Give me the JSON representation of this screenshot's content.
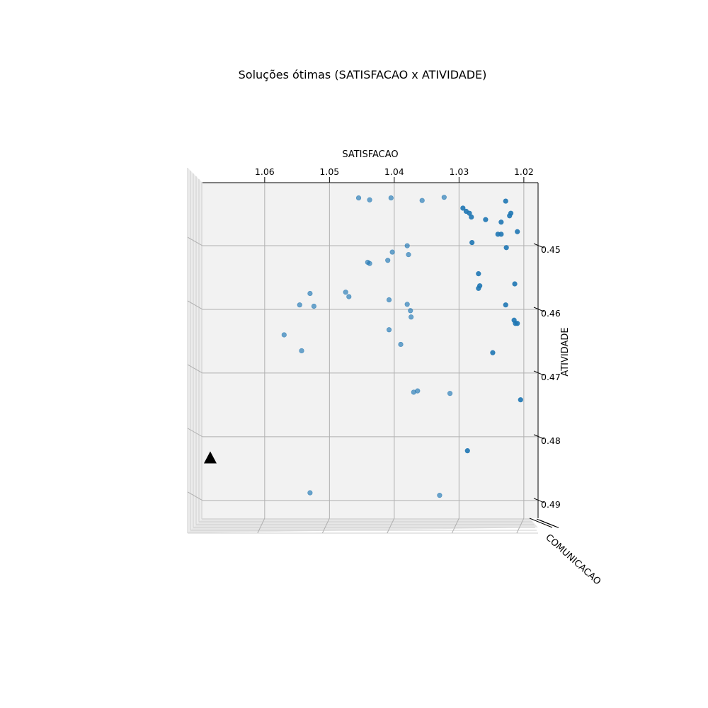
{
  "chart_data": {
    "type": "scatter",
    "projection": "3d",
    "title": "Soluções ótimas (SATISFACAO x ATIVIDADE)",
    "xlabel": "SATISFACAO",
    "ylabel": "ATIVIDADE",
    "zlabel": "COMUNICACAO",
    "x_axis_reversed": true,
    "xlim": [
      1.0696,
      1.0178
    ],
    "ylim": [
      0.4401,
      0.4928
    ],
    "x_ticks": [
      1.06,
      1.05,
      1.04,
      1.03,
      1.02
    ],
    "x_tick_labels": [
      "1.06",
      "1.05",
      "1.04",
      "1.03",
      "1.02"
    ],
    "y_ticks": [
      0.45,
      0.46,
      0.47,
      0.48,
      0.49
    ],
    "y_tick_labels": [
      "0.45",
      "0.46",
      "0.47",
      "0.48",
      "0.49"
    ],
    "grid": true,
    "series": [
      {
        "marker": "circle",
        "color": "#1f77b4",
        "points": [
          [
            1.0455,
            0.4425
          ],
          [
            1.0438,
            0.4428
          ],
          [
            1.0405,
            0.4425
          ],
          [
            1.0357,
            0.4429
          ],
          [
            1.0323,
            0.4424
          ],
          [
            1.0294,
            0.4441
          ],
          [
            1.0289,
            0.4446
          ],
          [
            1.0284,
            0.4449
          ],
          [
            1.0281,
            0.4455
          ],
          [
            1.0259,
            0.4459
          ],
          [
            1.0228,
            0.443
          ],
          [
            1.0222,
            0.4453
          ],
          [
            1.022,
            0.4449
          ],
          [
            1.0235,
            0.4463
          ],
          [
            1.024,
            0.4482
          ],
          [
            1.0235,
            0.4482
          ],
          [
            1.021,
            0.4478
          ],
          [
            1.028,
            0.4495
          ],
          [
            1.0227,
            0.4503
          ],
          [
            1.038,
            0.45
          ],
          [
            1.0403,
            0.451
          ],
          [
            1.0378,
            0.4514
          ],
          [
            1.0441,
            0.4526
          ],
          [
            1.0438,
            0.4528
          ],
          [
            1.041,
            0.4523
          ],
          [
            1.027,
            0.4544
          ],
          [
            1.0268,
            0.4563
          ],
          [
            1.027,
            0.4567
          ],
          [
            1.0214,
            0.456
          ],
          [
            1.0475,
            0.4573
          ],
          [
            1.047,
            0.458
          ],
          [
            1.053,
            0.4575
          ],
          [
            1.0546,
            0.4593
          ],
          [
            1.0524,
            0.4595
          ],
          [
            1.0408,
            0.4585
          ],
          [
            1.038,
            0.4592
          ],
          [
            1.0375,
            0.4602
          ],
          [
            1.0374,
            0.4612
          ],
          [
            1.0228,
            0.4593
          ],
          [
            1.0215,
            0.4617
          ],
          [
            1.0213,
            0.4622
          ],
          [
            1.021,
            0.4622
          ],
          [
            1.0408,
            0.4632
          ],
          [
            1.057,
            0.464
          ],
          [
            1.039,
            0.4655
          ],
          [
            1.0543,
            0.4665
          ],
          [
            1.0248,
            0.4668
          ],
          [
            1.037,
            0.473
          ],
          [
            1.0364,
            0.4728
          ],
          [
            1.0314,
            0.4732
          ],
          [
            1.0205,
            0.4742
          ],
          [
            1.0287,
            0.4822
          ],
          [
            1.053,
            0.4888
          ],
          [
            1.033,
            0.4892
          ]
        ]
      },
      {
        "marker": "triangle",
        "color": "#000000",
        "points": [
          [
            1.0684,
            0.4833
          ]
        ]
      }
    ]
  }
}
